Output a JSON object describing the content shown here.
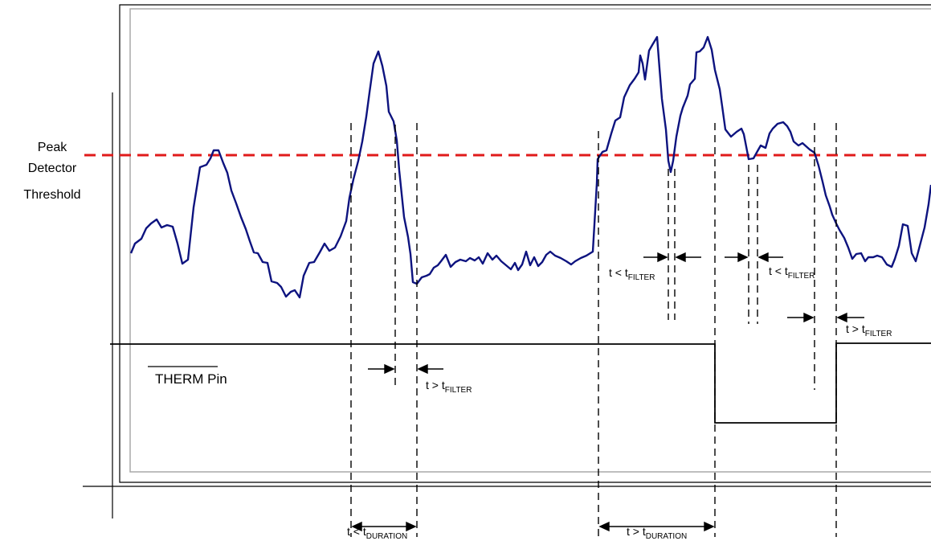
{
  "threshold_label": {
    "line1": "Peak",
    "line2": "Detector",
    "line3": "Threshold"
  },
  "pin_label": {
    "name": "THERM",
    "suffix": " Pin"
  },
  "timing_labels": {
    "t_lt": "t < t",
    "t_gt": "t > t",
    "filter": "FILTER",
    "duration": "DURATION"
  },
  "colors": {
    "signal": "#0d137f",
    "threshold": "#e01b1b",
    "lines": "#000000",
    "frame_inner": "#a8a8a8"
  }
}
